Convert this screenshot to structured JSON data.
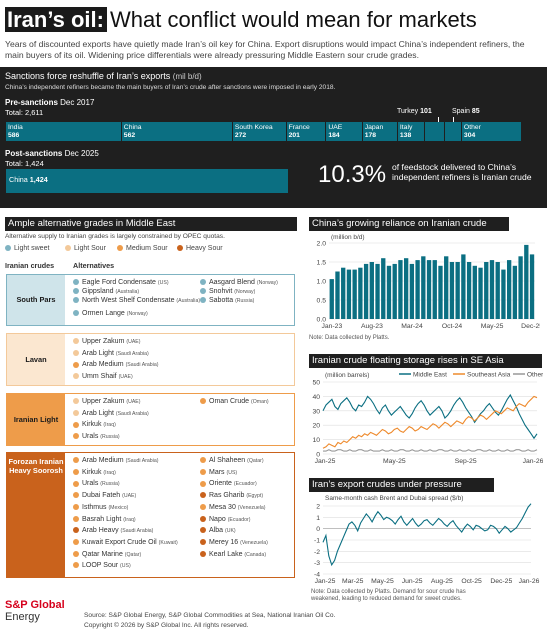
{
  "header": {
    "title_highlight": "Iran’s oil:",
    "title_rest": "What conflict would mean for markets",
    "intro": "Years of discounted exports have quietly made Iran’s oil key for China. Export disruptions would impact China’s independent refiners, the main buyers of its oil. Widening price differentials were already pressuring Middle Eastern sour crude grades."
  },
  "sanctions": {
    "title": "Sanctions force reshuffle of Iran’s exports",
    "unit": "(mil b/d)",
    "subtitle": "China’s independent refiners became the main buyers of Iran’s crude after sanctions were imposed in early 2018.",
    "pre_label": "Pre-sanctions",
    "pre_date": "Dec 2017",
    "pre_total": "Total: 2,611",
    "post_label": "Post-sanctions",
    "post_date": "Dec 2025",
    "post_total": "Total: 1,424",
    "pct": "10.3%",
    "pct_text": "of feedstock delivered to China’s independent refiners is Iranian crude",
    "turkey_label": "Turkey",
    "turkey_value": "101",
    "spain_label": "Spain",
    "spain_value": "85"
  },
  "grades": {
    "title": "Ample alternative grades in Middle East",
    "subtitle": "Alternative supply to Iranian grades is largely constrained by OPEC quotas.",
    "legend": [
      {
        "name": "Light sweet",
        "color": "#7fb3c2"
      },
      {
        "name": "Light Sour",
        "color": "#f3c99a"
      },
      {
        "name": "Medium Sour",
        "color": "#ee9c4a"
      },
      {
        "name": "Heavy Sour",
        "color": "#c9621c"
      }
    ],
    "col_iranian": "Iranian crudes",
    "col_alt": "Alternatives",
    "groups": [
      {
        "name": "South Pars",
        "border": "#7fb3c2",
        "fill": "#cfe4ea",
        "top": 274,
        "height": 52,
        "items": [
          {
            "n": "Eagle Ford Condensate",
            "o": "(US)",
            "c": "#7fb3c2",
            "col": 0,
            "row": 0
          },
          {
            "n": "Gippsland",
            "o": "(Australia)",
            "c": "#7fb3c2",
            "col": 0,
            "row": 1
          },
          {
            "n": "North West Shelf Condensate",
            "o": "(Australia)",
            "c": "#7fb3c2",
            "col": 0,
            "row": 2
          },
          {
            "n": "Ormen Lange",
            "o": "(Norway)",
            "c": "#7fb3c2",
            "col": 0,
            "row": 3.4
          },
          {
            "n": "Aasgard Blend",
            "o": "(Norway)",
            "c": "#7fb3c2",
            "col": 1,
            "row": 0
          },
          {
            "n": "Snohvit",
            "o": "(Norway)",
            "c": "#7fb3c2",
            "col": 1,
            "row": 1
          },
          {
            "n": "Sabotta",
            "o": "(Russia)",
            "c": "#7fb3c2",
            "col": 1,
            "row": 2
          }
        ]
      },
      {
        "name": "Lavan",
        "border": "#f3c99a",
        "fill": "#fbe7d0",
        "top": 333,
        "height": 53,
        "items": [
          {
            "n": "Upper Zakum",
            "o": "(UAE)",
            "c": "#f3c99a",
            "col": 0,
            "row": 0
          },
          {
            "n": "Arab Light",
            "o": "(Saudi Arabia)",
            "c": "#f3c99a",
            "col": 0,
            "row": 1.3
          },
          {
            "n": "Arab Medium",
            "o": "(Saudi Arabia)",
            "c": "#ee9c4a",
            "col": 0,
            "row": 2.6
          },
          {
            "n": "Umm Shaif",
            "o": "(UAE)",
            "c": "#f3c99a",
            "col": 0,
            "row": 3.9
          }
        ]
      },
      {
        "name": "Iranian Light",
        "border": "#ee9c4a",
        "fill": "#ee9c4a",
        "top": 393,
        "height": 53,
        "items": [
          {
            "n": "Upper Zakum",
            "o": "(UAE)",
            "c": "#f3c99a",
            "col": 0,
            "row": 0
          },
          {
            "n": "Arab Light",
            "o": "(Saudi Arabia)",
            "c": "#f3c99a",
            "col": 0,
            "row": 1.3
          },
          {
            "n": "Kirkuk",
            "o": "(Iraq)",
            "c": "#ee9c4a",
            "col": 0,
            "row": 2.6
          },
          {
            "n": "Urals",
            "o": "(Russia)",
            "c": "#ee9c4a",
            "col": 0,
            "row": 3.9
          },
          {
            "n": "Oman Crude",
            "o": "(Oman)",
            "c": "#ee9c4a",
            "col": 1,
            "row": 0
          }
        ]
      },
      {
        "name": "Forozan Iranian Heavy Soorosh",
        "border": "#c9621c",
        "fill": "#c9621c",
        "top": 452,
        "height": 126,
        "items": [
          {
            "n": "Arab Medium",
            "o": "(Saudi Arabia)",
            "c": "#ee9c4a",
            "col": 0,
            "row": 0
          },
          {
            "n": "Kirkuk",
            "o": "(Iraq)",
            "c": "#ee9c4a",
            "col": 0,
            "row": 1.3
          },
          {
            "n": "Urals",
            "o": "(Russia)",
            "c": "#ee9c4a",
            "col": 0,
            "row": 2.6
          },
          {
            "n": "Dubai Fateh",
            "o": "(UAE)",
            "c": "#ee9c4a",
            "col": 0,
            "row": 3.9
          },
          {
            "n": "Isthmus",
            "o": "(Mexico)",
            "c": "#ee9c4a",
            "col": 0,
            "row": 5.2
          },
          {
            "n": "Basrah Light",
            "o": "(Iraq)",
            "c": "#ee9c4a",
            "col": 0,
            "row": 6.5
          },
          {
            "n": "Arab Heavy",
            "o": "(Saudi Arabia)",
            "c": "#c9621c",
            "col": 0,
            "row": 7.8
          },
          {
            "n": "Kuwait Export Crude Oil",
            "o": "(Kuwait)",
            "c": "#ee9c4a",
            "col": 0,
            "row": 9.1
          },
          {
            "n": "Qatar Marine",
            "o": "(Qatar)",
            "c": "#ee9c4a",
            "col": 0,
            "row": 10.4
          },
          {
            "n": "LOOP Sour",
            "o": "(US)",
            "c": "#ee9c4a",
            "col": 0,
            "row": 11.7
          },
          {
            "n": "Al Shaheen",
            "o": "(Qatar)",
            "c": "#ee9c4a",
            "col": 1,
            "row": 0
          },
          {
            "n": "Mars",
            "o": "(US)",
            "c": "#ee9c4a",
            "col": 1,
            "row": 1.3
          },
          {
            "n": "Oriente",
            "o": "(Ecuador)",
            "c": "#ee9c4a",
            "col": 1,
            "row": 2.6
          },
          {
            "n": "Ras Gharib",
            "o": "(Egypt)",
            "c": "#c9621c",
            "col": 1,
            "row": 3.9
          },
          {
            "n": "Mesa 30",
            "o": "(Venezuela)",
            "c": "#ee9c4a",
            "col": 1,
            "row": 5.2
          },
          {
            "n": "Napo",
            "o": "(Ecuador)",
            "c": "#c9621c",
            "col": 1,
            "row": 6.5
          },
          {
            "n": "Alba",
            "o": "(UK)",
            "c": "#c9621c",
            "col": 1,
            "row": 7.8
          },
          {
            "n": "Merey 16",
            "o": "(Venezuela)",
            "c": "#c9621c",
            "col": 1,
            "row": 9.1
          },
          {
            "n": "Kearl Lake",
            "o": "(Canada)",
            "c": "#c9621c",
            "col": 1,
            "row": 10.4
          }
        ]
      }
    ]
  },
  "footer": {
    "brand1": "S&P Global",
    "brand2": "Energy",
    "sources": "Source: S&P Global Energy, S&P Global Commodities at Sea, National Iranian Oil Co.",
    "copyright": "Copyright © 2026 by S&P Global Inc. All rights reserved."
  },
  "chart_data": [
    {
      "type": "bar",
      "id": "exports_pre",
      "title": "Pre-sanctions Dec 2017",
      "categories": [
        "India",
        "China",
        "South Korea",
        "France",
        "UAE",
        "Japan",
        "Italy",
        "Turkey",
        "Spain",
        "Other"
      ],
      "values": [
        586,
        562,
        272,
        201,
        184,
        178,
        138,
        101,
        85,
        304
      ],
      "total": 2611
    },
    {
      "type": "bar",
      "id": "exports_post",
      "title": "Post-sanctions Dec 2025",
      "categories": [
        "China"
      ],
      "values": [
        1424
      ],
      "total": 1424
    },
    {
      "type": "bar",
      "id": "china_reliance",
      "title": "China’s growing reliance on Iranian crude",
      "ylabel": "(million b/d)",
      "note": "Note: Data collected by Platts.",
      "ylim": [
        0,
        2.0
      ],
      "yticks": [
        0,
        0.5,
        1.0,
        1.5,
        2.0
      ],
      "xticks": [
        "Jan-23",
        "Aug-23",
        "Mar-24",
        "Oct-24",
        "May-25",
        "Dec-25"
      ],
      "values": [
        1.05,
        1.25,
        1.35,
        1.3,
        1.3,
        1.35,
        1.45,
        1.5,
        1.45,
        1.6,
        1.4,
        1.45,
        1.55,
        1.6,
        1.45,
        1.55,
        1.65,
        1.55,
        1.55,
        1.4,
        1.65,
        1.5,
        1.5,
        1.7,
        1.5,
        1.4,
        1.35,
        1.5,
        1.55,
        1.5,
        1.3,
        1.55,
        1.4,
        1.65,
        1.95,
        1.7
      ]
    },
    {
      "type": "line",
      "id": "floating_storage",
      "title": "Iranian crude floating storage rises in SE Asia",
      "ylabel": "(million barrels)",
      "ylim": [
        0,
        50
      ],
      "yticks": [
        0,
        10,
        20,
        30,
        40,
        50
      ],
      "xticks": [
        "Jan-25",
        "May-25",
        "Sep-25",
        "Jan-26"
      ],
      "series": [
        {
          "name": "Middle East",
          "color": "#0b6f82",
          "values": [
            30,
            34,
            36,
            38,
            33,
            31,
            35,
            37,
            39,
            36,
            32,
            30,
            34,
            33,
            36,
            40,
            38,
            35,
            31,
            28,
            32,
            34,
            30,
            27,
            29,
            31,
            33,
            30,
            27,
            25,
            28,
            32,
            35,
            37,
            34,
            30,
            27,
            29,
            31,
            33,
            30,
            25,
            27,
            30,
            34,
            37,
            39,
            36,
            32,
            29,
            26,
            22,
            25,
            28,
            30,
            33,
            35,
            32,
            29,
            27,
            30,
            34,
            38,
            41,
            37,
            33,
            28,
            24,
            20,
            17,
            14,
            11,
            14
          ]
        },
        {
          "name": "Southeast Asia",
          "color": "#ee8a2c",
          "values": [
            4,
            5,
            7,
            6,
            5,
            8,
            7,
            9,
            8,
            10,
            12,
            11,
            13,
            12,
            14,
            13,
            15,
            14,
            13,
            15,
            17,
            16,
            14,
            15,
            17,
            18,
            16,
            15,
            17,
            19,
            18,
            16,
            17,
            19,
            18,
            17,
            19,
            21,
            20,
            18,
            20,
            22,
            21,
            19,
            21,
            23,
            22,
            21,
            24,
            26,
            25,
            23,
            25,
            27,
            26,
            24,
            26,
            28,
            30,
            29,
            28,
            30,
            32,
            31,
            30,
            33,
            35,
            34,
            33,
            36,
            38,
            40,
            39
          ]
        },
        {
          "name": "Other",
          "color": "#999999",
          "values": [
            2,
            2,
            3,
            2,
            2,
            3,
            3,
            2,
            2,
            3,
            2,
            2,
            3,
            3,
            2,
            2,
            3,
            2,
            2,
            2,
            3,
            2,
            2,
            3,
            2,
            2,
            3,
            3,
            2,
            2,
            3,
            2,
            2,
            3,
            2,
            2,
            3,
            2,
            2,
            3,
            3,
            2,
            2,
            3,
            2,
            2,
            3,
            2,
            2,
            3,
            2,
            2,
            3,
            3,
            2,
            2,
            3,
            2,
            2,
            3,
            2,
            2,
            3,
            2,
            2,
            3,
            3,
            2,
            2,
            3,
            2,
            2,
            3
          ]
        }
      ]
    },
    {
      "type": "line",
      "id": "spread",
      "title": "Iran’s export crudes under pressure",
      "ylabel": "Same-month cash Brent and Dubai spread ($/b)",
      "note": "Note: Data collected by Platts. Demand for sour crude has weakened, leading to reduced demand for sweet crudes.",
      "ylim": [
        -4,
        2
      ],
      "yticks": [
        2,
        1,
        0,
        -1,
        -2,
        -3,
        -4
      ],
      "xticks": [
        "Jan-25",
        "Mar-25",
        "May-25",
        "Jun-25",
        "Aug-25",
        "Oct-25",
        "Dec-25",
        "Jan-26"
      ],
      "series": [
        {
          "name": "",
          "color": "#0b6f82",
          "values": [
            -1.2,
            -0.6,
            -2.4,
            -3.2,
            -2.8,
            -2.0,
            -1.4,
            -0.8,
            -0.2,
            0.4,
            0.6,
            0.3,
            -0.2,
            0.5,
            0.9,
            1.3,
            1.0,
            0.6,
            1.1,
            1.5,
            1.2,
            0.8,
            1.0,
            0.9,
            0.7,
            0.4,
            0.8,
            1.1,
            0.6,
            0.3,
            0.6,
            0.9,
            0.5,
            0.2,
            0.4,
            0.7,
            0.8,
            0.5,
            0.3,
            0.6,
            0.9,
            0.7,
            0.4,
            0.2,
            0.5,
            0.7,
            0.3,
            0.0,
            -0.3,
            0.1,
            0.4,
            0.2,
            -0.1,
            0.3,
            0.2,
            0.0,
            -0.2,
            -0.1,
            0.3,
            0.2,
            0.0,
            -0.4,
            -0.1,
            0.2,
            0.0,
            -0.3,
            -0.1,
            0.1,
            0.5,
            0.9,
            1.4,
            1.9,
            2.2
          ]
        }
      ]
    }
  ]
}
